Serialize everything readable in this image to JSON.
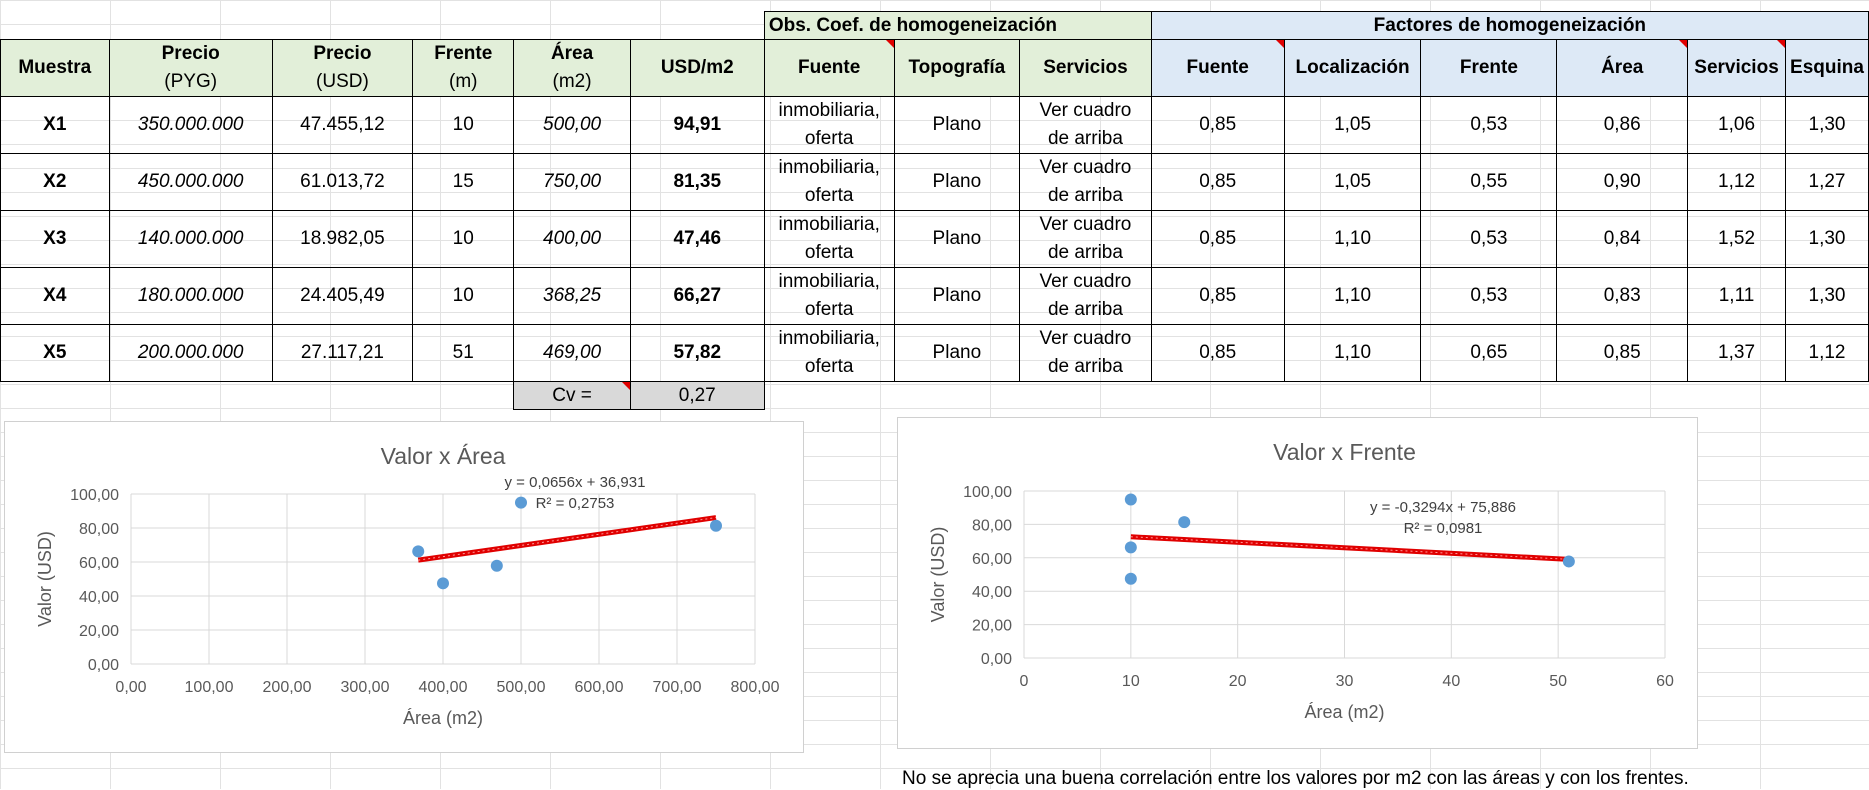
{
  "table": {
    "group_headers": {
      "obs": "Obs. Coef. de homogeneización",
      "factores": "Factores de homogeneización"
    },
    "columns": {
      "muestra": "Muestra",
      "precio_pyg_l1": "Precio",
      "precio_pyg_l2": "(PYG)",
      "precio_usd_l1": "Precio",
      "precio_usd_l2": "(USD)",
      "frente_l1": "Frente",
      "frente_l2": "(m)",
      "area_l1": "Área",
      "area_l2": "(m2)",
      "usd_m2": "USD/m2",
      "fuente": "Fuente",
      "topografia": "Topografía",
      "servicios": "Servicios",
      "f_fuente": "Fuente",
      "f_localizacion": "Localización",
      "f_frente": "Frente",
      "f_area": "Área",
      "f_servicios": "Servicios",
      "f_esquina": "Esquina"
    },
    "rows": [
      {
        "muestra": "X1",
        "pyg": "350.000.000",
        "usd": "47.455,12",
        "frente": "10",
        "area": "500,00",
        "usdm2": "94,91",
        "fuente_l1": "inmobiliaria,",
        "fuente_l2": "oferta",
        "topo": "Plano",
        "serv_l1": "Ver cuadro",
        "serv_l2": "de arriba",
        "ff": "0,85",
        "fl": "1,05",
        "ffr": "0,53",
        "fa": "0,86",
        "fs": "1,06",
        "fe": "1,30"
      },
      {
        "muestra": "X2",
        "pyg": "450.000.000",
        "usd": "61.013,72",
        "frente": "15",
        "area": "750,00",
        "usdm2": "81,35",
        "fuente_l1": "inmobiliaria,",
        "fuente_l2": "oferta",
        "topo": "Plano",
        "serv_l1": "Ver cuadro",
        "serv_l2": "de arriba",
        "ff": "0,85",
        "fl": "1,05",
        "ffr": "0,55",
        "fa": "0,90",
        "fs": "1,12",
        "fe": "1,27"
      },
      {
        "muestra": "X3",
        "pyg": "140.000.000",
        "usd": "18.982,05",
        "frente": "10",
        "area": "400,00",
        "usdm2": "47,46",
        "fuente_l1": "inmobiliaria,",
        "fuente_l2": "oferta",
        "topo": "Plano",
        "serv_l1": "Ver cuadro",
        "serv_l2": "de arriba",
        "ff": "0,85",
        "fl": "1,10",
        "ffr": "0,53",
        "fa": "0,84",
        "fs": "1,52",
        "fe": "1,30"
      },
      {
        "muestra": "X4",
        "pyg": "180.000.000",
        "usd": "24.405,49",
        "frente": "10",
        "area": "368,25",
        "usdm2": "66,27",
        "fuente_l1": "inmobiliaria,",
        "fuente_l2": "oferta",
        "topo": "Plano",
        "serv_l1": "Ver cuadro",
        "serv_l2": "de arriba",
        "ff": "0,85",
        "fl": "1,10",
        "ffr": "0,53",
        "fa": "0,83",
        "fs": "1,11",
        "fe": "1,30"
      },
      {
        "muestra": "X5",
        "pyg": "200.000.000",
        "usd": "27.117,21",
        "frente": "51",
        "area": "469,00",
        "usdm2": "57,82",
        "fuente_l1": "inmobiliaria,",
        "fuente_l2": "oferta",
        "topo": "Plano",
        "serv_l1": "Ver cuadro",
        "serv_l2": "de arriba",
        "ff": "0,85",
        "fl": "1,10",
        "ffr": "0,65",
        "fa": "0,85",
        "fs": "1,37",
        "fe": "1,12"
      }
    ],
    "cv_label": "Cv =",
    "cv_value": "0,27"
  },
  "colors": {
    "header_green": "#e2efd9",
    "header_blue": "#dde9f6",
    "point": "#5b9bd5",
    "trend": "#e00000",
    "gridline": "#d9d9d9"
  },
  "chart_data": [
    {
      "type": "scatter",
      "title": "Valor x Área",
      "xlabel": "Área (m2)",
      "ylabel": "Valor (USD)",
      "xlim": [
        0,
        800
      ],
      "ylim": [
        0,
        100
      ],
      "xticks": [
        "0,00",
        "100,00",
        "200,00",
        "300,00",
        "400,00",
        "500,00",
        "600,00",
        "700,00",
        "800,00"
      ],
      "yticks": [
        "0,00",
        "20,00",
        "40,00",
        "60,00",
        "80,00",
        "100,00"
      ],
      "points": [
        [
          500,
          94.91
        ],
        [
          750,
          81.35
        ],
        [
          400,
          47.46
        ],
        [
          368.25,
          66.27
        ],
        [
          469,
          57.82
        ]
      ],
      "trendline": {
        "slope": 0.0656,
        "intercept": 36.931,
        "x_range": [
          368.25,
          750
        ]
      },
      "equation": "y = 0,0656x + 36,931",
      "r2": "R² = 0,2753",
      "grid": true
    },
    {
      "type": "scatter",
      "title": "Valor x Frente",
      "xlabel": "Área (m2)",
      "ylabel": "Valor (USD)",
      "xlim": [
        0,
        60
      ],
      "ylim": [
        0,
        100
      ],
      "xticks": [
        "0",
        "10",
        "20",
        "30",
        "40",
        "50",
        "60"
      ],
      "yticks": [
        "0,00",
        "20,00",
        "40,00",
        "60,00",
        "80,00",
        "100,00"
      ],
      "points": [
        [
          10,
          94.91
        ],
        [
          15,
          81.35
        ],
        [
          10,
          47.46
        ],
        [
          10,
          66.27
        ],
        [
          51,
          57.82
        ]
      ],
      "trendline": {
        "slope": -0.3294,
        "intercept": 75.886,
        "x_range": [
          10,
          51
        ]
      },
      "equation": "y = -0,3294x + 75,886",
      "r2": "R² = 0,0981",
      "grid": true
    }
  ],
  "note": "No se aprecia una buena correlación entre los valores por m2 con las áreas y con los frentes."
}
